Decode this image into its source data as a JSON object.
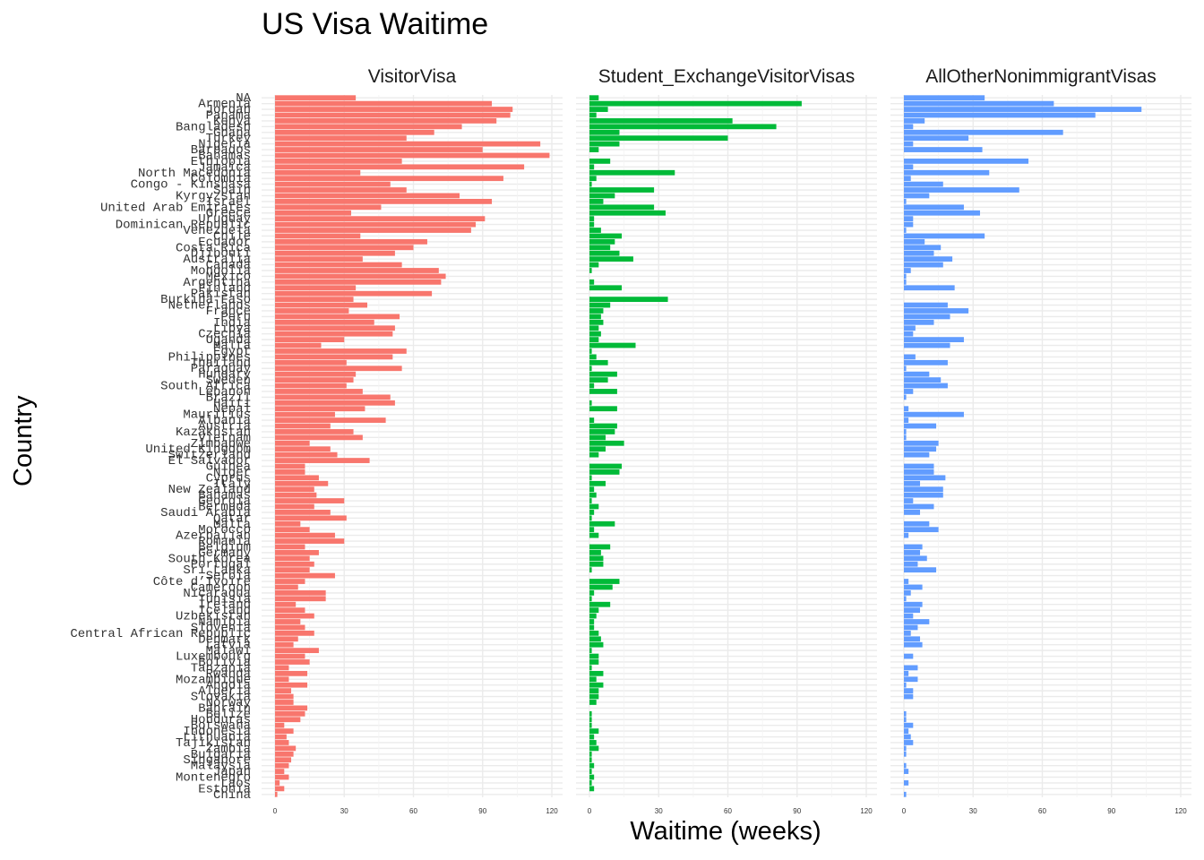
{
  "chart_data": {
    "type": "bar",
    "orientation": "horizontal",
    "faceted": true,
    "title": "US Visa Waitime",
    "xlabel": "Waitime (weeks)",
    "ylabel": "Country",
    "xlim": [
      0,
      122
    ],
    "xticks": [
      0,
      30,
      60,
      90,
      120
    ],
    "grid": true,
    "legend": "none",
    "panels": [
      "VisitorVisa",
      "Student_ExchangeVisitorVisas",
      "AllOtherNonimmigrantVisas"
    ],
    "colors": [
      "#F8766D",
      "#00BA38",
      "#619CFF"
    ],
    "categories": [
      "NA",
      "Armenia",
      "Jordan",
      "Panama",
      "Kenya",
      "Bangladesh",
      "Ghana",
      "Turkey",
      "Nigeria",
      "Barbados",
      "Bahamas",
      "Ethiopia",
      "Jamaica",
      "North Macedonia",
      "Colombia",
      "Congo - Kinshasa",
      "Spain",
      "Kyrgyzstan",
      "Israel",
      "United Arab Emirates",
      "Greece",
      "Uruguay",
      "Dominican Republic",
      "Venezuela",
      "Chile",
      "Ecuador",
      "Costa Rica",
      "Djibouti",
      "Australia",
      "Canada",
      "Mongolia",
      "Mexico",
      "Argentina",
      "Finland",
      "Pakistan",
      "Burkina Faso",
      "Netherlands",
      "France",
      "Peru",
      "India",
      "Libya",
      "Czechia",
      "Uganda",
      "Malta",
      "Egypt",
      "Philippines",
      "Thailand",
      "Paraguay",
      "Hungary",
      "Sweden",
      "South Africa",
      "Lebanon",
      "Brazil",
      "Haiti",
      "Nepal",
      "Mauritius",
      "Albania",
      "Austria",
      "Kazakhstan",
      "Vietnam",
      "Zimbabwe",
      "United Kingdom",
      "Switzerland",
      "El Salvador",
      "Guinea",
      "Niger",
      "Cyprus",
      "Italy",
      "New Zealand",
      "Bahamas",
      "Georgia",
      "Bermuda",
      "Saudi Arabia",
      "Qatar",
      "Malta",
      "Morocco",
      "Azerbaijan",
      "Romania",
      "Belgium",
      "Germany",
      "South Korea",
      "Portugal",
      "Sri Lanka",
      "Serbia",
      "Côte d’Ivoire",
      "Cameroon",
      "Nicaragua",
      "Tunisia",
      "Ireland",
      "Iceland",
      "Uzbekistan",
      "Namibia",
      "Slovenia",
      "Central African Republic",
      "Denmark",
      "Latvia",
      "Malawi",
      "Luxembourg",
      "Bolivia",
      "Tanzania",
      "Rwanda",
      "Mozambique",
      "Angola",
      "Algeria",
      "Slovakia",
      "Norway",
      "Bahrain",
      "Belize",
      "Honduras",
      "Botswana",
      "Indonesia",
      "Lithuania",
      "Tajikistan",
      "Zambia",
      "Bulgaria",
      "Singapore",
      "Malaysia",
      "Japan",
      "Montenegro",
      "Laos",
      "Estonia",
      "China"
    ],
    "series": [
      {
        "name": "VisitorVisa",
        "values": [
          35,
          94,
          103,
          102,
          96,
          81,
          69,
          57,
          115,
          90,
          119,
          55,
          108,
          37,
          99,
          50,
          57,
          80,
          94,
          46,
          33,
          91,
          87,
          85,
          37,
          66,
          60,
          52,
          38,
          55,
          71,
          74,
          72,
          35,
          68,
          34,
          40,
          32,
          54,
          43,
          52,
          51,
          30,
          20,
          57,
          51,
          31,
          55,
          35,
          34,
          31,
          38,
          50,
          52,
          39,
          26,
          48,
          24,
          34,
          38,
          15,
          24,
          27,
          41,
          13,
          13,
          19,
          23,
          17,
          18,
          30,
          17,
          24,
          31,
          11,
          15,
          26,
          30,
          13,
          19,
          15,
          17,
          15,
          26,
          13,
          10,
          22,
          22,
          9,
          13,
          17,
          11,
          13,
          17,
          10,
          8,
          19,
          13,
          15,
          6,
          14,
          6,
          14,
          7,
          8,
          8,
          14,
          13,
          11,
          4,
          8,
          5,
          6,
          9,
          8,
          7,
          6,
          4,
          6,
          2,
          4,
          1
        ]
      },
      {
        "name": "Student_ExchangeVisitorVisas",
        "values": [
          4,
          92,
          8,
          3,
          62,
          81,
          13,
          60,
          13,
          4,
          0,
          9,
          2,
          37,
          3,
          1,
          28,
          11,
          6,
          28,
          33,
          2,
          2,
          5,
          14,
          11,
          9,
          13,
          19,
          4,
          1,
          0,
          2,
          14,
          0,
          34,
          9,
          6,
          5,
          6,
          4,
          5,
          4,
          20,
          1,
          3,
          8,
          1,
          12,
          8,
          2,
          12,
          0,
          1,
          12,
          0,
          2,
          12,
          11,
          7,
          15,
          7,
          4,
          0,
          14,
          13,
          1,
          7,
          2,
          3,
          1,
          4,
          2,
          1,
          11,
          2,
          4,
          0,
          9,
          5,
          6,
          6,
          1,
          0,
          13,
          10,
          2,
          1,
          9,
          4,
          3,
          2,
          2,
          4,
          5,
          6,
          1,
          4,
          4,
          1,
          6,
          3,
          6,
          4,
          4,
          3,
          0,
          1,
          1,
          1,
          4,
          2,
          3,
          4,
          1,
          1,
          2,
          1,
          2,
          1,
          2,
          0
        ]
      },
      {
        "name": "AllOtherNonimmigrantVisas",
        "values": [
          35,
          65,
          103,
          83,
          9,
          4,
          69,
          28,
          4,
          34,
          0,
          54,
          4,
          37,
          3,
          17,
          50,
          11,
          1,
          26,
          33,
          4,
          4,
          1,
          35,
          9,
          16,
          13,
          21,
          17,
          3,
          1,
          1,
          22,
          0,
          0,
          19,
          28,
          20,
          13,
          5,
          4,
          26,
          20,
          0,
          5,
          19,
          1,
          11,
          16,
          19,
          4,
          1,
          0,
          2,
          26,
          2,
          14,
          1,
          1,
          15,
          14,
          11,
          0,
          13,
          13,
          18,
          7,
          17,
          17,
          4,
          13,
          7,
          0,
          11,
          15,
          2,
          0,
          8,
          7,
          10,
          6,
          14,
          0,
          2,
          8,
          3,
          1,
          8,
          7,
          4,
          11,
          6,
          3,
          7,
          8,
          0,
          4,
          0,
          6,
          2,
          6,
          1,
          4,
          4,
          0,
          0,
          1,
          1,
          4,
          2,
          3,
          4,
          1,
          1,
          0,
          1,
          2,
          0,
          2,
          0,
          1
        ]
      }
    ]
  }
}
